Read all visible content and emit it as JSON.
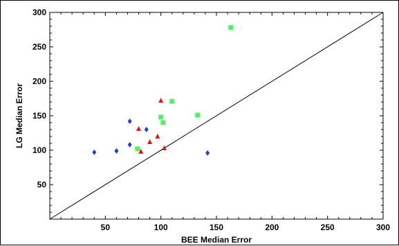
{
  "chart_data": {
    "type": "scatter",
    "xlabel": "BEE  Median Error",
    "ylabel": "LG Median Error",
    "xlim": [
      0,
      300
    ],
    "ylim": [
      0,
      300
    ],
    "x_ticks": [
      50,
      100,
      150,
      200,
      250,
      300
    ],
    "y_ticks": [
      50,
      100,
      150,
      200,
      250,
      300
    ],
    "grid": false,
    "reference_line": {
      "from": [
        0,
        0
      ],
      "to": [
        300,
        300
      ],
      "color": "#000000"
    },
    "series": [
      {
        "marker": "diamond",
        "color": "#1f3fd6",
        "points": [
          [
            40,
            97
          ],
          [
            60,
            99
          ],
          [
            72,
            108
          ],
          [
            72,
            142
          ],
          [
            87,
            130
          ],
          [
            142,
            96
          ]
        ]
      },
      {
        "marker": "triangle",
        "color": "#e0141a",
        "points": [
          [
            80,
            131
          ],
          [
            82,
            98
          ],
          [
            90,
            112
          ],
          [
            97,
            120
          ],
          [
            100,
            172
          ],
          [
            103,
            103
          ]
        ]
      },
      {
        "marker": "square",
        "color": "#55ee66",
        "points": [
          [
            79,
            102
          ],
          [
            100,
            148
          ],
          [
            102,
            140
          ],
          [
            110,
            171
          ],
          [
            133,
            151
          ],
          [
            163,
            278
          ]
        ]
      }
    ]
  }
}
